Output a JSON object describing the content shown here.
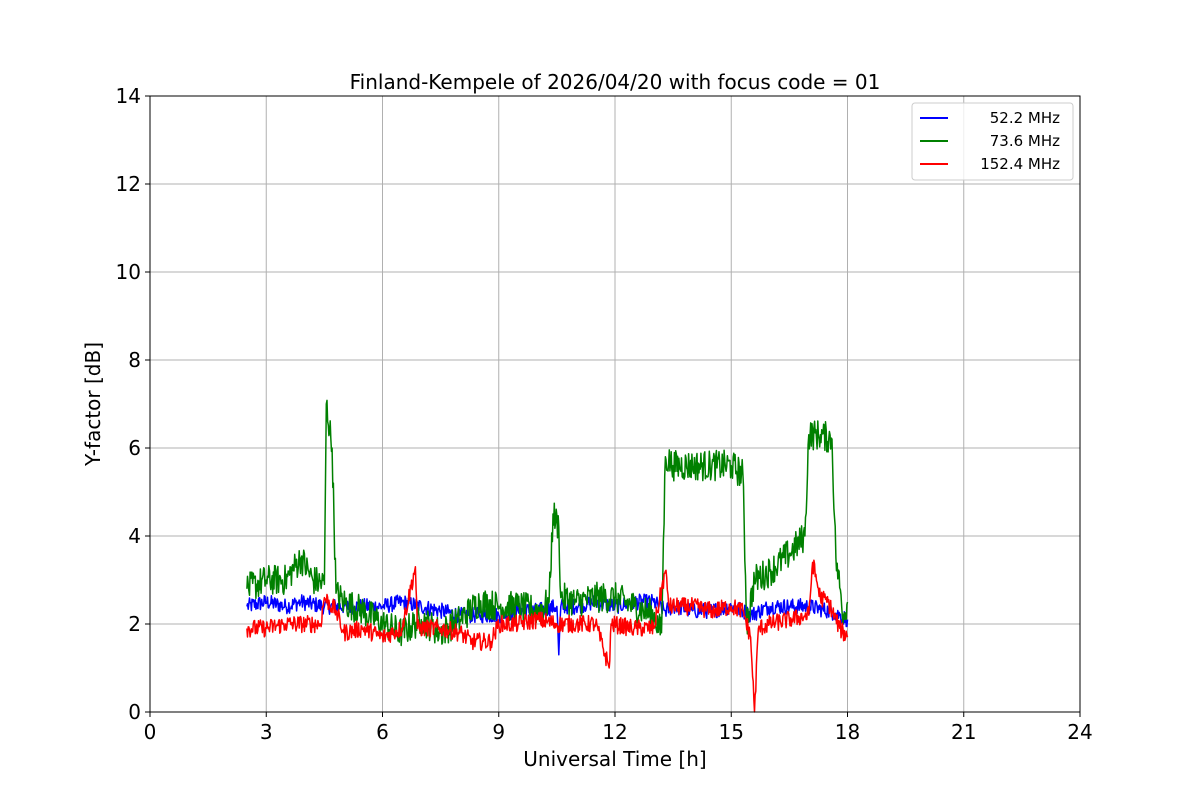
{
  "chart_data": {
    "type": "line",
    "title": "Finland-Kempele of 2026/04/20 with focus code = 01",
    "xlabel": "Universal Time [h]",
    "ylabel": "Y-factor [dB]",
    "xlim": [
      0,
      24
    ],
    "ylim": [
      0,
      14
    ],
    "xticks": [
      0,
      3,
      6,
      9,
      12,
      15,
      18,
      21,
      24
    ],
    "yticks": [
      0,
      2,
      4,
      6,
      8,
      10,
      12,
      14
    ],
    "grid": true,
    "legend_position": "top-right",
    "series": [
      {
        "name": "52.2 MHz",
        "color": "#0000ff",
        "points": [
          [
            2.5,
            2.4
          ],
          [
            3.0,
            2.5
          ],
          [
            3.5,
            2.4
          ],
          [
            3.9,
            2.5
          ],
          [
            4.5,
            2.4
          ],
          [
            5.0,
            2.4
          ],
          [
            5.5,
            2.4
          ],
          [
            6.0,
            2.4
          ],
          [
            6.5,
            2.5
          ],
          [
            7.0,
            2.4
          ],
          [
            7.5,
            2.3
          ],
          [
            8.0,
            2.2
          ],
          [
            8.5,
            2.2
          ],
          [
            9.0,
            2.2
          ],
          [
            9.5,
            2.3
          ],
          [
            10.0,
            2.3
          ],
          [
            10.5,
            2.4
          ],
          [
            10.55,
            1.3
          ],
          [
            10.6,
            2.4
          ],
          [
            11.0,
            2.4
          ],
          [
            11.5,
            2.5
          ],
          [
            12.0,
            2.4
          ],
          [
            12.5,
            2.5
          ],
          [
            13.0,
            2.5
          ],
          [
            13.3,
            2.3
          ],
          [
            13.5,
            2.4
          ],
          [
            14.0,
            2.3
          ],
          [
            14.5,
            2.3
          ],
          [
            15.0,
            2.4
          ],
          [
            15.3,
            2.3
          ],
          [
            15.5,
            2.2
          ],
          [
            16.0,
            2.4
          ],
          [
            16.5,
            2.4
          ],
          [
            17.0,
            2.4
          ],
          [
            17.5,
            2.3
          ],
          [
            17.8,
            2.2
          ],
          [
            18.0,
            2.1
          ]
        ]
      },
      {
        "name": "73.6 MHz",
        "color": "#008000",
        "points": [
          [
            2.5,
            2.8
          ],
          [
            3.0,
            3.0
          ],
          [
            3.5,
            3.0
          ],
          [
            3.9,
            3.5
          ],
          [
            4.2,
            3.0
          ],
          [
            4.5,
            2.9
          ],
          [
            4.55,
            7.0
          ],
          [
            4.7,
            6.0
          ],
          [
            4.8,
            2.7
          ],
          [
            5.0,
            2.5
          ],
          [
            5.5,
            2.3
          ],
          [
            6.0,
            2.0
          ],
          [
            6.5,
            1.8
          ],
          [
            7.0,
            2.1
          ],
          [
            7.5,
            1.8
          ],
          [
            8.0,
            2.1
          ],
          [
            8.5,
            2.5
          ],
          [
            9.0,
            2.4
          ],
          [
            9.5,
            2.4
          ],
          [
            10.0,
            2.3
          ],
          [
            10.3,
            2.5
          ],
          [
            10.4,
            4.5
          ],
          [
            10.55,
            4.2
          ],
          [
            10.6,
            2.6
          ],
          [
            11.0,
            2.5
          ],
          [
            11.5,
            2.6
          ],
          [
            12.0,
            2.6
          ],
          [
            12.5,
            2.4
          ],
          [
            13.0,
            2.2
          ],
          [
            13.2,
            1.8
          ],
          [
            13.3,
            5.8
          ],
          [
            13.5,
            5.6
          ],
          [
            14.0,
            5.6
          ],
          [
            14.5,
            5.6
          ],
          [
            15.0,
            5.6
          ],
          [
            15.3,
            5.4
          ],
          [
            15.4,
            2.0
          ],
          [
            15.6,
            3.0
          ],
          [
            16.0,
            3.2
          ],
          [
            16.5,
            3.6
          ],
          [
            16.9,
            4.0
          ],
          [
            17.0,
            6.3
          ],
          [
            17.3,
            6.3
          ],
          [
            17.6,
            6.2
          ],
          [
            17.7,
            3.5
          ],
          [
            17.9,
            2.2
          ],
          [
            18.0,
            2.5
          ]
        ]
      },
      {
        "name": "152.4 MHz",
        "color": "#ff0000",
        "points": [
          [
            2.5,
            1.9
          ],
          [
            3.0,
            1.9
          ],
          [
            3.5,
            2.0
          ],
          [
            4.0,
            2.0
          ],
          [
            4.4,
            2.0
          ],
          [
            4.5,
            2.6
          ],
          [
            4.8,
            2.3
          ],
          [
            5.0,
            1.8
          ],
          [
            5.5,
            1.9
          ],
          [
            6.0,
            1.7
          ],
          [
            6.5,
            1.9
          ],
          [
            6.85,
            3.3
          ],
          [
            6.9,
            1.9
          ],
          [
            7.5,
            1.9
          ],
          [
            8.0,
            1.8
          ],
          [
            8.3,
            1.6
          ],
          [
            8.8,
            1.6
          ],
          [
            9.0,
            2.0
          ],
          [
            9.5,
            2.0
          ],
          [
            10.0,
            2.1
          ],
          [
            10.5,
            2.0
          ],
          [
            11.0,
            2.0
          ],
          [
            11.5,
            2.0
          ],
          [
            11.85,
            1.0
          ],
          [
            11.9,
            2.0
          ],
          [
            12.5,
            1.9
          ],
          [
            13.0,
            1.9
          ],
          [
            13.3,
            3.2
          ],
          [
            13.4,
            2.4
          ],
          [
            14.0,
            2.4
          ],
          [
            14.5,
            2.3
          ],
          [
            15.0,
            2.4
          ],
          [
            15.3,
            2.3
          ],
          [
            15.5,
            1.7
          ],
          [
            15.6,
            0.0
          ],
          [
            15.7,
            1.9
          ],
          [
            16.0,
            2.0
          ],
          [
            16.5,
            2.1
          ],
          [
            17.0,
            2.2
          ],
          [
            17.1,
            3.4
          ],
          [
            17.3,
            2.6
          ],
          [
            17.5,
            2.5
          ],
          [
            17.8,
            1.9
          ],
          [
            18.0,
            1.7
          ]
        ]
      }
    ]
  }
}
